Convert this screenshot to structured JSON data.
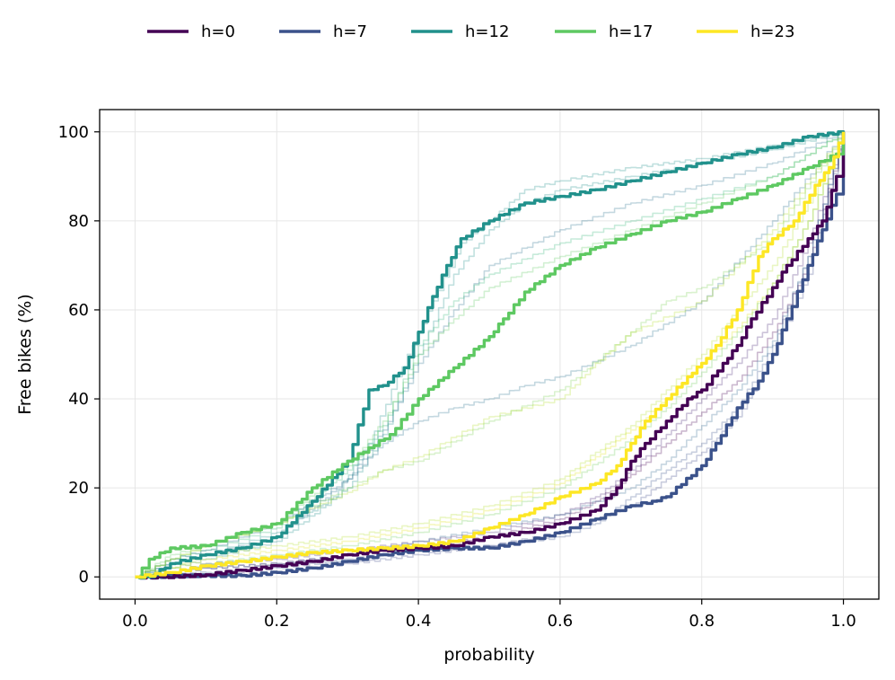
{
  "chart_data": {
    "type": "line",
    "title": "",
    "xlabel": "probability",
    "ylabel": "Free bikes (%)",
    "xlim": [
      -0.05,
      1.05
    ],
    "ylim": [
      -5,
      105
    ],
    "xticks": [
      0.0,
      0.2,
      0.4,
      0.6,
      0.8,
      1.0
    ],
    "xtick_labels": [
      "0.0",
      "0.2",
      "0.4",
      "0.6",
      "0.8",
      "1.0"
    ],
    "yticks": [
      0,
      20,
      40,
      60,
      80,
      100
    ],
    "ytick_labels": [
      "0",
      "20",
      "40",
      "60",
      "80",
      "100"
    ],
    "grid": true,
    "legend_position": "top-center",
    "series": [
      {
        "name": "h=0",
        "color": "#440154",
        "x": [
          0,
          0.04,
          0.1,
          0.15,
          0.2,
          0.25,
          0.3,
          0.35,
          0.4,
          0.45,
          0.5,
          0.55,
          0.6,
          0.65,
          0.68,
          0.7,
          0.72,
          0.75,
          0.78,
          0.8,
          0.83,
          0.85,
          0.87,
          0.9,
          0.92,
          0.95,
          0.97,
          0.99,
          1.0
        ],
        "y": [
          0,
          0,
          0.5,
          1.5,
          2.5,
          3.5,
          5,
          6,
          6.5,
          7,
          9,
          10,
          12,
          15,
          20,
          26,
          30,
          35,
          40,
          42,
          48,
          52,
          58,
          65,
          70,
          76,
          80,
          90,
          100
        ]
      },
      {
        "name": "h=7",
        "color": "#3b528b",
        "x": [
          0,
          0.03,
          0.05,
          0.1,
          0.15,
          0.2,
          0.25,
          0.3,
          0.35,
          0.4,
          0.45,
          0.5,
          0.55,
          0.6,
          0.65,
          0.7,
          0.73,
          0.75,
          0.8,
          0.82,
          0.85,
          0.88,
          0.9,
          0.92,
          0.95,
          0.97,
          0.99,
          1.0
        ],
        "y": [
          0,
          0,
          0.3,
          0.3,
          0.3,
          1,
          2,
          3.5,
          5,
          6,
          6.5,
          6.5,
          8,
          10,
          13,
          16,
          17,
          18,
          25,
          30,
          38,
          44,
          50,
          58,
          70,
          78,
          86,
          100
        ]
      },
      {
        "name": "h=12",
        "color": "#21918c",
        "x": [
          0,
          0.02,
          0.05,
          0.1,
          0.15,
          0.2,
          0.25,
          0.3,
          0.33,
          0.35,
          0.38,
          0.4,
          0.42,
          0.44,
          0.46,
          0.5,
          0.55,
          0.6,
          0.65,
          0.7,
          0.75,
          0.8,
          0.85,
          0.9,
          0.95,
          1.0
        ],
        "y": [
          0,
          0,
          3,
          5,
          6.5,
          9,
          17,
          26,
          42,
          43,
          47,
          55,
          63,
          70,
          76,
          80,
          84,
          85.5,
          87,
          89,
          91,
          93,
          95,
          96.5,
          99,
          100
        ]
      },
      {
        "name": "h=17",
        "color": "#5ec962",
        "x": [
          0,
          0.01,
          0.02,
          0.05,
          0.1,
          0.15,
          0.2,
          0.25,
          0.3,
          0.33,
          0.36,
          0.4,
          0.45,
          0.5,
          0.52,
          0.55,
          0.6,
          0.65,
          0.7,
          0.75,
          0.8,
          0.85,
          0.9,
          0.95,
          0.99,
          1.0
        ],
        "y": [
          0,
          2,
          4,
          6.5,
          7,
          10,
          12,
          20,
          26,
          29,
          32,
          40,
          47,
          54,
          58,
          64,
          70,
          74,
          77,
          80,
          82,
          85,
          88,
          92,
          95,
          100
        ]
      },
      {
        "name": "h=23",
        "color": "#fde725",
        "x": [
          0,
          0.05,
          0.1,
          0.15,
          0.2,
          0.25,
          0.3,
          0.35,
          0.4,
          0.45,
          0.5,
          0.55,
          0.6,
          0.65,
          0.68,
          0.7,
          0.72,
          0.75,
          0.78,
          0.8,
          0.82,
          0.85,
          0.88,
          0.9,
          0.93,
          0.96,
          0.98,
          1.0
        ],
        "y": [
          0,
          1,
          2.5,
          3.5,
          4.5,
          5.5,
          6,
          6.5,
          7,
          8,
          11,
          14,
          18,
          21,
          25,
          30,
          35,
          40,
          45,
          48,
          52,
          60,
          72,
          76,
          80,
          88,
          92,
          100
        ]
      }
    ],
    "background_series": [
      {
        "color": "#21918c",
        "x": [
          0,
          0.05,
          0.1,
          0.2,
          0.28,
          0.33,
          0.37,
          0.42,
          0.46,
          0.5,
          0.55,
          0.6,
          0.7,
          0.8,
          0.9,
          1.0
        ],
        "y": [
          0,
          3,
          5,
          10,
          18,
          30,
          45,
          62,
          75,
          80,
          87,
          89,
          92,
          94,
          97,
          100
        ]
      },
      {
        "color": "#21918c",
        "x": [
          0,
          0.05,
          0.1,
          0.2,
          0.3,
          0.35,
          0.4,
          0.45,
          0.5,
          0.55,
          0.6,
          0.7,
          0.8,
          0.9,
          1.0
        ],
        "y": [
          0,
          2,
          4,
          8,
          20,
          32,
          50,
          68,
          78,
          84,
          87,
          90,
          93,
          96,
          100
        ]
      },
      {
        "color": "#2c728e",
        "x": [
          0,
          0.05,
          0.1,
          0.2,
          0.3,
          0.35,
          0.4,
          0.45,
          0.5,
          0.6,
          0.7,
          0.8,
          0.9,
          1.0
        ],
        "y": [
          0,
          3,
          5,
          9,
          22,
          33,
          48,
          60,
          70,
          78,
          84,
          88,
          93,
          100
        ]
      },
      {
        "color": "#35b779",
        "x": [
          0,
          0.05,
          0.1,
          0.2,
          0.3,
          0.35,
          0.4,
          0.45,
          0.5,
          0.6,
          0.7,
          0.8,
          0.9,
          1.0
        ],
        "y": [
          0,
          4,
          6,
          11,
          24,
          34,
          52,
          62,
          68,
          75,
          80,
          85,
          90,
          100
        ]
      },
      {
        "color": "#5ec962",
        "x": [
          0,
          0.05,
          0.1,
          0.2,
          0.3,
          0.35,
          0.4,
          0.45,
          0.5,
          0.6,
          0.7,
          0.8,
          0.9,
          1.0
        ],
        "y": [
          0,
          5,
          7,
          12,
          25,
          35,
          50,
          58,
          65,
          72,
          78,
          84,
          90,
          100
        ]
      },
      {
        "color": "#2c728e",
        "x": [
          0,
          0.05,
          0.1,
          0.2,
          0.3,
          0.35,
          0.4,
          0.45,
          0.5,
          0.55,
          0.6,
          0.7,
          0.8,
          0.9,
          1.0
        ],
        "y": [
          0,
          4,
          6,
          12,
          22,
          30,
          35,
          38,
          40,
          43,
          45,
          52,
          62,
          80,
          100
        ]
      },
      {
        "color": "#7ad151",
        "x": [
          0,
          0.05,
          0.1,
          0.2,
          0.3,
          0.35,
          0.4,
          0.5,
          0.6,
          0.7,
          0.75,
          0.8,
          0.9,
          1.0
        ],
        "y": [
          0,
          4,
          7,
          12,
          20,
          24,
          26,
          35,
          42,
          55,
          62,
          65,
          76,
          100
        ]
      },
      {
        "color": "#b5de2b",
        "x": [
          0,
          0.05,
          0.1,
          0.2,
          0.3,
          0.35,
          0.4,
          0.5,
          0.6,
          0.65,
          0.7,
          0.8,
          0.9,
          1.0
        ],
        "y": [
          0,
          4,
          7,
          12,
          19,
          24,
          27,
          36,
          40,
          48,
          55,
          62,
          78,
          100
        ]
      },
      {
        "color": "#3b528b",
        "x": [
          0,
          0.05,
          0.1,
          0.2,
          0.3,
          0.4,
          0.5,
          0.6,
          0.65,
          0.7,
          0.75,
          0.8,
          0.85,
          0.9,
          0.95,
          1.0
        ],
        "y": [
          0,
          0.5,
          1,
          2,
          4,
          6,
          7,
          9,
          12,
          18,
          24,
          30,
          38,
          52,
          72,
          100
        ]
      },
      {
        "color": "#440154",
        "x": [
          0,
          0.05,
          0.1,
          0.2,
          0.3,
          0.4,
          0.5,
          0.6,
          0.65,
          0.7,
          0.75,
          0.8,
          0.85,
          0.9,
          0.95,
          1.0
        ],
        "y": [
          0,
          1,
          2,
          3,
          5,
          7,
          9,
          13,
          17,
          23,
          30,
          37,
          44,
          55,
          70,
          100
        ]
      },
      {
        "color": "#482878",
        "x": [
          0,
          0.05,
          0.1,
          0.2,
          0.3,
          0.4,
          0.5,
          0.6,
          0.65,
          0.7,
          0.75,
          0.8,
          0.85,
          0.9,
          0.95,
          1.0
        ],
        "y": [
          0,
          1,
          3,
          4,
          6,
          8,
          10,
          14,
          18,
          24,
          32,
          40,
          48,
          58,
          75,
          100
        ]
      },
      {
        "color": "#3e4989",
        "x": [
          0,
          0.05,
          0.1,
          0.2,
          0.3,
          0.4,
          0.5,
          0.6,
          0.7,
          0.75,
          0.8,
          0.85,
          0.9,
          0.95,
          1.0
        ],
        "y": [
          0,
          0,
          0.5,
          1,
          3,
          5,
          7,
          10,
          16,
          22,
          28,
          36,
          50,
          68,
          100
        ]
      },
      {
        "color": "#31688e",
        "x": [
          0,
          0.05,
          0.1,
          0.2,
          0.3,
          0.4,
          0.5,
          0.6,
          0.7,
          0.75,
          0.8,
          0.85,
          0.9,
          0.95,
          1.0
        ],
        "y": [
          0,
          1,
          2,
          3,
          5,
          8,
          11,
          14,
          20,
          26,
          34,
          42,
          53,
          72,
          100
        ]
      },
      {
        "color": "#dde318",
        "x": [
          0,
          0.05,
          0.1,
          0.2,
          0.3,
          0.4,
          0.5,
          0.6,
          0.65,
          0.7,
          0.75,
          0.8,
          0.85,
          0.9,
          0.95,
          1.0
        ],
        "y": [
          0,
          2,
          4,
          6,
          8,
          11,
          15,
          21,
          27,
          33,
          40,
          48,
          56,
          66,
          80,
          100
        ]
      },
      {
        "color": "#b5de2b",
        "x": [
          0,
          0.05,
          0.1,
          0.2,
          0.3,
          0.4,
          0.5,
          0.6,
          0.65,
          0.7,
          0.75,
          0.8,
          0.85,
          0.9,
          0.95,
          1.0
        ],
        "y": [
          0,
          2,
          5,
          7,
          9,
          12,
          16,
          22,
          28,
          34,
          42,
          50,
          60,
          70,
          84,
          100
        ]
      },
      {
        "color": "#6ece58",
        "x": [
          0,
          0.05,
          0.1,
          0.2,
          0.3,
          0.4,
          0.5,
          0.6,
          0.7,
          0.75,
          0.8,
          0.85,
          0.9,
          0.95,
          1.0
        ],
        "y": [
          0,
          1,
          3,
          5,
          7,
          10,
          14,
          20,
          31,
          38,
          46,
          55,
          66,
          80,
          100
        ]
      }
    ]
  }
}
